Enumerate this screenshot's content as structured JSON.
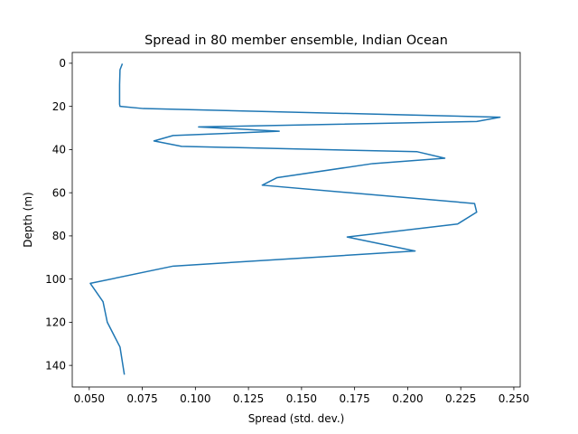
{
  "chart_data": {
    "type": "line",
    "title": "Spread in 80 member ensemble, Indian Ocean",
    "xlabel": "Spread (std. dev.)",
    "ylabel": "Depth (m)",
    "xlim": [
      0.042,
      0.253
    ],
    "ylim": [
      150,
      -5
    ],
    "y_inverted": true,
    "grid": false,
    "legend": "none",
    "line_color": "#1f77b4",
    "x_ticks": [
      0.05,
      0.075,
      0.1,
      0.125,
      0.15,
      0.175,
      0.2,
      0.225,
      0.25
    ],
    "x_tick_labels": [
      "0.050",
      "0.075",
      "0.100",
      "0.125",
      "0.150",
      "0.175",
      "0.200",
      "0.225",
      "0.250"
    ],
    "y_ticks": [
      0,
      20,
      40,
      60,
      80,
      100,
      120,
      140
    ],
    "y_tick_labels": [
      "0",
      "20",
      "40",
      "60",
      "80",
      "100",
      "120",
      "140"
    ],
    "series": [
      {
        "x": [
          0.0655,
          0.0645,
          0.0643,
          0.0643,
          0.0643,
          0.0645,
          0.0755,
          0.2435,
          0.2325,
          0.1015,
          0.1395,
          0.0895,
          0.0805,
          0.0935,
          0.2045,
          0.2175,
          0.1835,
          0.1385,
          0.1315,
          0.2315,
          0.2325,
          0.2235,
          0.1715,
          0.2035,
          0.0895,
          0.0505,
          0.0565,
          0.0585,
          0.0645,
          0.0665
        ],
        "y": [
          0.5,
          3,
          10,
          17,
          19,
          20,
          21,
          25,
          27,
          29.5,
          31.5,
          33.5,
          36,
          38.5,
          41,
          44,
          46.5,
          53,
          56.5,
          65,
          69,
          74.5,
          80.5,
          87,
          94,
          102,
          110.5,
          120,
          131.5,
          144
        ]
      }
    ]
  }
}
